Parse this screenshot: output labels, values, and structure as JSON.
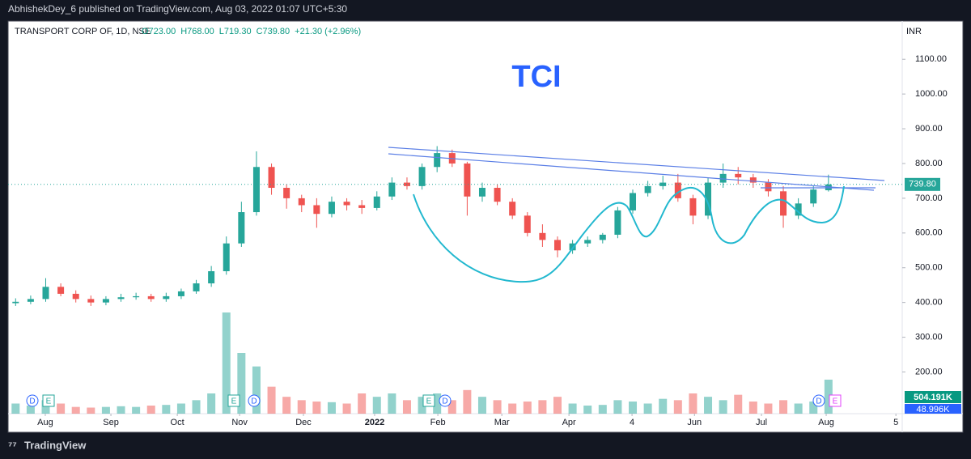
{
  "header": {
    "publisher": "AbhishekDey_6 published on TradingView.com, Aug 03, 2022 01:07 UTC+5:30"
  },
  "footer": {
    "brand": "TradingView"
  },
  "chart_data": {
    "type": "candlestick",
    "title": "TCI",
    "symbol": "TRANSPORT CORP OF, 1D, NSE",
    "ohlc_labels": [
      "O723.00",
      "H768.00",
      "L719.30",
      "C739.80",
      "+21.30 (+2.96%)"
    ],
    "currency": "INR",
    "up_color": "#26a69a",
    "down_color": "#ef5350",
    "open": [
      398,
      402,
      410,
      445,
      425,
      410,
      400,
      410,
      415,
      418,
      410,
      418,
      432,
      455,
      490,
      570,
      660,
      790,
      730,
      700,
      680,
      655,
      690,
      680,
      672,
      705,
      745,
      735,
      790,
      830,
      800,
      705,
      730,
      690,
      650,
      600,
      580,
      550,
      570,
      580,
      595,
      665,
      715,
      735,
      745,
      700,
      650,
      745,
      770,
      760,
      745,
      720,
      650,
      685,
      723
    ],
    "high": [
      412,
      420,
      470,
      455,
      435,
      420,
      418,
      425,
      428,
      425,
      428,
      440,
      465,
      505,
      590,
      690,
      835,
      800,
      740,
      710,
      700,
      705,
      700,
      695,
      720,
      760,
      760,
      800,
      850,
      840,
      805,
      745,
      740,
      700,
      660,
      625,
      590,
      580,
      590,
      600,
      675,
      725,
      750,
      765,
      770,
      710,
      760,
      800,
      790,
      770,
      755,
      735,
      700,
      735,
      768
    ],
    "low": [
      390,
      395,
      402,
      418,
      400,
      390,
      392,
      402,
      408,
      402,
      402,
      410,
      425,
      445,
      480,
      560,
      650,
      710,
      670,
      660,
      615,
      645,
      665,
      655,
      665,
      695,
      725,
      725,
      775,
      790,
      650,
      690,
      680,
      640,
      590,
      560,
      530,
      540,
      560,
      570,
      585,
      655,
      705,
      725,
      690,
      625,
      640,
      730,
      740,
      730,
      705,
      615,
      640,
      675,
      719.3
    ],
    "close": [
      402,
      410,
      445,
      425,
      410,
      400,
      410,
      415,
      418,
      410,
      418,
      432,
      455,
      490,
      570,
      660,
      790,
      730,
      700,
      680,
      655,
      690,
      680,
      672,
      705,
      745,
      735,
      790,
      830,
      800,
      705,
      730,
      690,
      650,
      600,
      580,
      550,
      570,
      580,
      595,
      665,
      715,
      735,
      745,
      700,
      650,
      745,
      770,
      760,
      745,
      720,
      650,
      685,
      725,
      739.8
    ],
    "volume": [
      150000,
      120000,
      200000,
      150000,
      100000,
      90000,
      100000,
      110000,
      100000,
      120000,
      130000,
      150000,
      200000,
      300000,
      1500000,
      900000,
      700000,
      400000,
      250000,
      200000,
      180000,
      170000,
      150000,
      300000,
      250000,
      300000,
      200000,
      250000,
      300000,
      200000,
      350000,
      250000,
      200000,
      150000,
      180000,
      200000,
      250000,
      150000,
      120000,
      130000,
      200000,
      180000,
      150000,
      220000,
      200000,
      300000,
      250000,
      200000,
      280000,
      180000,
      150000,
      200000,
      150000,
      180000,
      504191
    ],
    "volume_ylim": [
      0,
      3000000
    ],
    "last_price_label": "739.80",
    "volume_labels": [
      "504.191K",
      "48.996K"
    ],
    "events": [
      "D",
      "E",
      "E",
      "D",
      "E",
      "D",
      "D",
      "E"
    ],
    "xlim": [
      0,
      59.4
    ],
    "xticks": [
      {
        "value": 2.47,
        "label": "Aug"
      },
      {
        "value": 6.83,
        "label": "Sep"
      },
      {
        "value": 11.24,
        "label": "Oct"
      },
      {
        "value": 15.38,
        "label": "Nov"
      },
      {
        "value": 19.62,
        "label": "Dec"
      },
      {
        "value": 24.35,
        "label": "2022"
      },
      {
        "value": 28.55,
        "label": "Feb"
      },
      {
        "value": 32.8,
        "label": "Mar"
      },
      {
        "value": 37.26,
        "label": "Apr"
      },
      {
        "value": 41.45,
        "label": "4"
      },
      {
        "value": 45.6,
        "label": "Jun"
      },
      {
        "value": 50.05,
        "label": "Jul"
      },
      {
        "value": 54.35,
        "label": "Aug"
      },
      {
        "value": 58.98,
        "label": "5"
      }
    ],
    "ylim": [
      80,
      1210
    ],
    "yticks": [
      {
        "value": 200,
        "label": "200.00"
      },
      {
        "value": 300,
        "label": "300.00"
      },
      {
        "value": 400,
        "label": "400.00"
      },
      {
        "value": 500,
        "label": "500.00"
      },
      {
        "value": 600,
        "label": "600.00"
      },
      {
        "value": 700,
        "label": "700.00"
      },
      {
        "value": 800,
        "label": "800.00"
      },
      {
        "value": 900,
        "label": "900.00"
      },
      {
        "value": 1000,
        "label": "1000.00"
      },
      {
        "value": 1100,
        "label": "1100.00"
      }
    ]
  }
}
